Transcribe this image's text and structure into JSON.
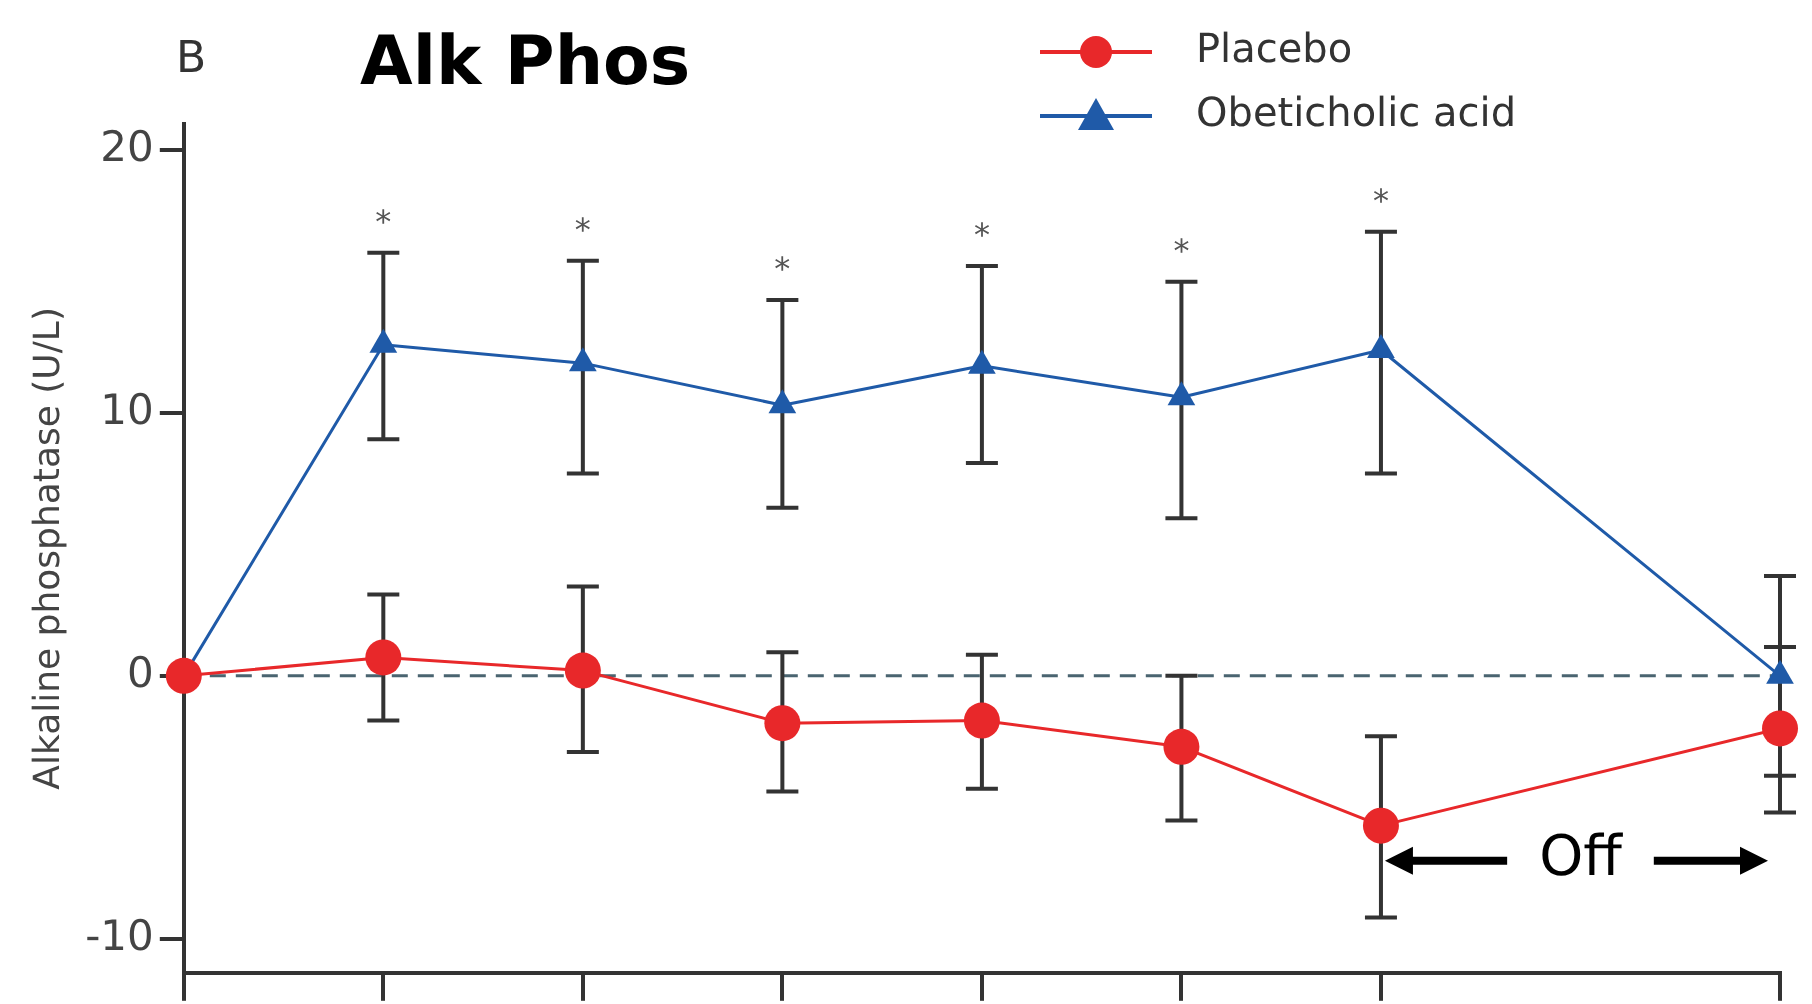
{
  "chart_data": {
    "type": "line",
    "title": "Alk Phos",
    "ylabel": "Alkaline phosphatase (U/L)",
    "categories": [
      null,
      null,
      null,
      null,
      null,
      null,
      null,
      null,
      null
    ],
    "ylim": [
      -11.3,
      21
    ],
    "yticks": [
      -10,
      0,
      10,
      20
    ],
    "tick_labels": "y",
    "grid": false,
    "legend": "top right",
    "line_style": "solid",
    "series": [
      {
        "name": "Placebo",
        "color": "#e8282a",
        "marker": "circle",
        "values": [
          0,
          0.7,
          0.2,
          -1.8,
          -1.7,
          -2.7,
          -5.7,
          null,
          -2.0
        ],
        "errors": [
          null,
          [
            -1.7,
            3.1
          ],
          [
            -2.9,
            3.4
          ],
          [
            -4.4,
            0.9
          ],
          [
            -4.3,
            0.8
          ],
          [
            -5.5,
            0.0
          ],
          [
            -9.2,
            -2.3
          ],
          null,
          [
            -5.2,
            1.1
          ]
        ]
      },
      {
        "name": "Obeticholic acid",
        "color": "#1f5aa8",
        "marker": "triangle",
        "values": [
          0,
          12.6,
          11.9,
          10.3,
          11.8,
          10.6,
          12.4,
          null,
          0
        ],
        "errors": [
          null,
          [
            9.0,
            16.1
          ],
          [
            7.7,
            15.8
          ],
          [
            6.4,
            14.3
          ],
          [
            8.1,
            15.6
          ],
          [
            6.0,
            15.0
          ],
          [
            7.7,
            16.9
          ],
          null,
          [
            -3.8,
            3.8
          ]
        ]
      }
    ],
    "ref_lines": [
      {
        "axis": "y",
        "value": 0,
        "color": "#4a6470",
        "line_style": "dashed"
      }
    ],
    "annotations": [
      "B",
      "*",
      "*",
      "*",
      "*",
      "*",
      "*",
      "Off"
    ]
  }
}
